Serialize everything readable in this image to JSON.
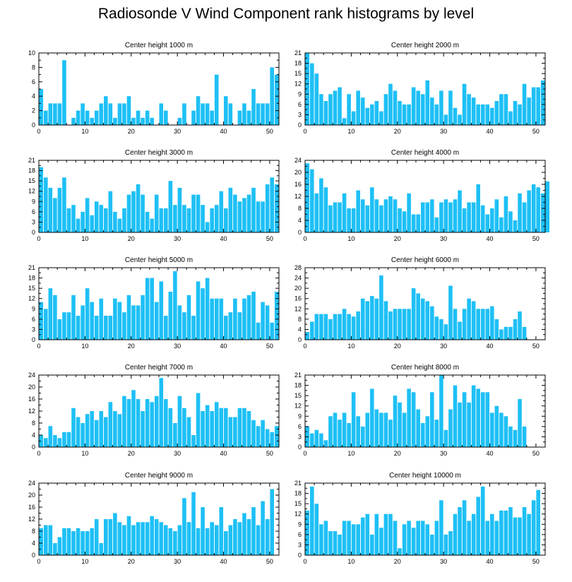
{
  "title": "Radiosonde V Wind Component rank histograms by level",
  "bar_color": "#1ec0f5",
  "chart_data": [
    {
      "type": "bar",
      "title": "Center height 1000 m",
      "xlim": [
        0,
        52
      ],
      "ylim": [
        0,
        10
      ],
      "xticks": [
        0,
        10,
        20,
        30,
        40,
        50
      ],
      "yticks": [
        0,
        2,
        4,
        6,
        8,
        10
      ],
      "values": [
        5,
        2,
        3,
        3,
        3,
        9,
        0,
        1,
        2,
        3,
        2,
        1,
        2,
        3,
        4,
        3,
        1,
        3,
        3,
        4,
        1,
        2,
        1,
        2,
        1,
        0,
        3,
        2,
        0,
        0,
        1,
        3,
        0,
        2,
        4,
        3,
        3,
        2,
        7,
        0,
        4,
        3,
        0,
        2,
        3,
        2,
        5,
        3,
        3,
        3,
        8,
        7
      ]
    },
    {
      "type": "bar",
      "title": "Center height 2000 m",
      "xlim": [
        0,
        52
      ],
      "ylim": [
        0,
        21
      ],
      "xticks": [
        0,
        10,
        20,
        30,
        40,
        50
      ],
      "yticks": [
        0,
        3,
        6,
        9,
        12,
        15,
        18,
        21
      ],
      "values": [
        21,
        18,
        15,
        9,
        7,
        9,
        10,
        11,
        2,
        9,
        4,
        10,
        8,
        5,
        6,
        7,
        4,
        9,
        12,
        10,
        7,
        6,
        6,
        11,
        10,
        9,
        13,
        8,
        6,
        10,
        3,
        10,
        5,
        3,
        12,
        9,
        8,
        6,
        6,
        6,
        5,
        7,
        9,
        9,
        4,
        7,
        6,
        12,
        8,
        11,
        11,
        13
      ]
    },
    {
      "type": "bar",
      "title": "Center height 3000 m",
      "xlim": [
        0,
        52
      ],
      "ylim": [
        0,
        21
      ],
      "xticks": [
        0,
        10,
        20,
        30,
        40,
        50
      ],
      "yticks": [
        0,
        3,
        6,
        9,
        12,
        15,
        18,
        21
      ],
      "values": [
        19,
        16,
        13,
        10,
        13,
        16,
        7,
        8,
        4,
        6,
        10,
        5,
        9,
        8,
        7,
        12,
        6,
        4,
        7,
        11,
        12,
        14,
        11,
        6,
        4,
        11,
        7,
        7,
        15,
        8,
        13,
        8,
        7,
        11,
        11,
        8,
        3,
        7,
        8,
        12,
        7,
        13,
        11,
        9,
        10,
        11,
        13,
        9,
        9,
        14,
        16,
        14
      ]
    },
    {
      "type": "bar",
      "title": "Center height 4000 m",
      "xlim": [
        0,
        52
      ],
      "ylim": [
        0,
        24
      ],
      "xticks": [
        0,
        10,
        20,
        30,
        40,
        50
      ],
      "yticks": [
        0,
        4,
        8,
        12,
        16,
        20,
        24
      ],
      "values": [
        23,
        21,
        13,
        18,
        15,
        9,
        10,
        10,
        13,
        8,
        8,
        14,
        11,
        9,
        15,
        11,
        9,
        11,
        12,
        11,
        8,
        7,
        13,
        6,
        6,
        10,
        10,
        11,
        5,
        10,
        11,
        10,
        11,
        14,
        8,
        10,
        10,
        16,
        9,
        6,
        8,
        11,
        5,
        12,
        7,
        4,
        13,
        10,
        14,
        16,
        15,
        13,
        17
      ]
    },
    {
      "type": "bar",
      "title": "Center height 5000 m",
      "xlim": [
        0,
        52
      ],
      "ylim": [
        0,
        21
      ],
      "xticks": [
        0,
        10,
        20,
        30,
        40,
        50
      ],
      "yticks": [
        0,
        3,
        6,
        9,
        12,
        15,
        18,
        21
      ],
      "values": [
        11,
        9,
        15,
        13,
        6,
        8,
        8,
        13,
        7,
        10,
        15,
        11,
        7,
        12,
        7,
        7,
        12,
        11,
        8,
        13,
        10,
        10,
        13,
        18,
        18,
        11,
        17,
        7,
        14,
        20,
        10,
        8,
        13,
        7,
        17,
        15,
        18,
        12,
        12,
        12,
        7,
        8,
        12,
        8,
        12,
        13,
        14,
        5,
        11,
        10,
        5,
        14
      ]
    },
    {
      "type": "bar",
      "title": "Center height 6000 m",
      "xlim": [
        0,
        52
      ],
      "ylim": [
        0,
        28
      ],
      "xticks": [
        0,
        10,
        20,
        30,
        40,
        50
      ],
      "yticks": [
        0,
        4,
        8,
        12,
        16,
        20,
        24,
        28
      ],
      "values": [
        3,
        7,
        10,
        10,
        10,
        8,
        10,
        10,
        12,
        10,
        9,
        11,
        16,
        15,
        17,
        16,
        25,
        15,
        11,
        12,
        12,
        12,
        12,
        20,
        18,
        16,
        15,
        13,
        9,
        8,
        6,
        21,
        12,
        7,
        12,
        16,
        15,
        12,
        12,
        12,
        13,
        8,
        4,
        5,
        5,
        8,
        11,
        5
      ]
    },
    {
      "type": "bar",
      "title": "Center height 7000 m",
      "xlim": [
        0,
        52
      ],
      "ylim": [
        0,
        24
      ],
      "xticks": [
        0,
        10,
        20,
        30,
        40,
        50
      ],
      "yticks": [
        0,
        4,
        8,
        12,
        16,
        20,
        24
      ],
      "values": [
        4,
        3,
        7,
        4,
        3,
        5,
        5,
        13,
        10,
        8,
        11,
        12,
        9,
        12,
        10,
        15,
        12,
        11,
        17,
        16,
        19,
        16,
        12,
        16,
        15,
        17,
        23,
        16,
        13,
        8,
        17,
        13,
        10,
        4,
        18,
        12,
        14,
        12,
        15,
        13,
        13,
        10,
        10,
        13,
        13,
        12,
        9,
        7,
        9,
        6,
        5,
        7
      ]
    },
    {
      "type": "bar",
      "title": "Center height 8000 m",
      "xlim": [
        0,
        52
      ],
      "ylim": [
        0,
        21
      ],
      "xticks": [
        0,
        10,
        20,
        30,
        40,
        50
      ],
      "yticks": [
        0,
        3,
        6,
        9,
        12,
        15,
        18,
        21
      ],
      "values": [
        6,
        4,
        5,
        4,
        2,
        9,
        10,
        8,
        10,
        7,
        16,
        9,
        6,
        10,
        17,
        11,
        10,
        10,
        8,
        15,
        13,
        10,
        17,
        16,
        11,
        7,
        9,
        16,
        8,
        21,
        5,
        11,
        18,
        13,
        16,
        13,
        18,
        17,
        16,
        16,
        10,
        12,
        10,
        9,
        6,
        5,
        14,
        6
      ]
    },
    {
      "type": "bar",
      "title": "Center height 9000 m",
      "xlim": [
        0,
        52
      ],
      "ylim": [
        0,
        24
      ],
      "xticks": [
        0,
        10,
        20,
        30,
        40,
        50
      ],
      "yticks": [
        0,
        4,
        8,
        12,
        16,
        20,
        24
      ],
      "values": [
        9,
        10,
        10,
        4,
        6,
        9,
        9,
        8,
        9,
        8,
        8,
        9,
        12,
        4,
        12,
        12,
        14,
        11,
        10,
        13,
        10,
        11,
        11,
        11,
        13,
        12,
        11,
        10,
        9,
        8,
        10,
        19,
        11,
        21,
        9,
        16,
        9,
        11,
        10,
        16,
        8,
        10,
        12,
        11,
        14,
        12,
        16,
        10,
        18,
        12,
        22
      ]
    },
    {
      "type": "bar",
      "title": "Center height 10000 m",
      "xlim": [
        0,
        52
      ],
      "ylim": [
        0,
        21
      ],
      "xticks": [
        0,
        10,
        20,
        30,
        40,
        50
      ],
      "yticks": [
        0,
        3,
        6,
        9,
        12,
        15,
        18,
        21
      ],
      "values": [
        13,
        20,
        15,
        9,
        10,
        7,
        7,
        6,
        10,
        10,
        9,
        9,
        11,
        12,
        6,
        12,
        8,
        12,
        12,
        10,
        2,
        9,
        10,
        8,
        10,
        10,
        9,
        6,
        10,
        16,
        6,
        7,
        12,
        14,
        16,
        10,
        12,
        17,
        20,
        10,
        12,
        10,
        13,
        13,
        14,
        11,
        11,
        14,
        12,
        16,
        19
      ]
    }
  ]
}
